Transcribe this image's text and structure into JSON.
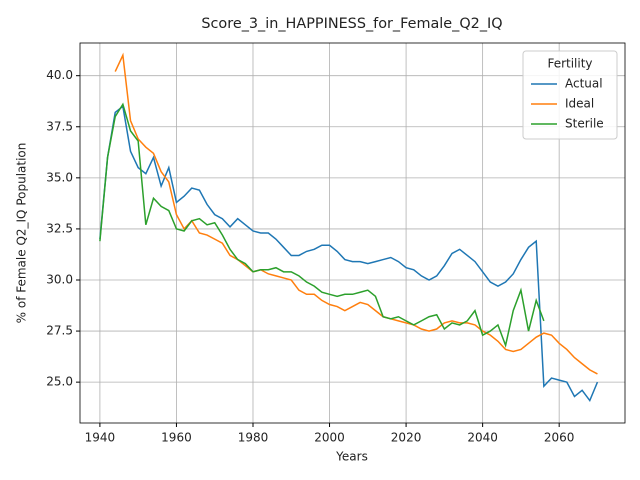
{
  "chart_data": {
    "type": "line",
    "title": "Score_3_in_HAPPINESS_for_Female_Q2_IQ",
    "xlabel": "Years",
    "ylabel": "% of Female Q2_IQ Population",
    "legend_title": "Fertility",
    "legend": "upper right",
    "grid": true,
    "xlim": [
      1934.8,
      2077.2
    ],
    "ylim": [
      23.0,
      41.6
    ],
    "xticks": [
      1940,
      1960,
      1980,
      2000,
      2020,
      2040,
      2060
    ],
    "yticks": [
      {
        "value": 25,
        "label": "25.0"
      },
      {
        "value": 27.5,
        "label": "27.5"
      },
      {
        "value": 30,
        "label": "30.0"
      },
      {
        "value": 32.5,
        "label": "32.5"
      },
      {
        "value": 35,
        "label": "35.0"
      },
      {
        "value": 37.5,
        "label": "37.5"
      },
      {
        "value": 40,
        "label": "40.0"
      }
    ],
    "x": [
      1940,
      1942,
      1944,
      1946,
      1948,
      1950,
      1952,
      1954,
      1956,
      1958,
      1960,
      1962,
      1964,
      1966,
      1968,
      1970,
      1972,
      1974,
      1976,
      1978,
      1980,
      1982,
      1984,
      1986,
      1988,
      1990,
      1992,
      1994,
      1996,
      1998,
      2000,
      2002,
      2004,
      2006,
      2008,
      2010,
      2012,
      2014,
      2016,
      2018,
      2020,
      2022,
      2024,
      2026,
      2028,
      2030,
      2032,
      2034,
      2036,
      2038,
      2040,
      2042,
      2044,
      2046,
      2048,
      2050,
      2052,
      2054,
      2056,
      2058,
      2060,
      2062,
      2064,
      2066,
      2068,
      2070
    ],
    "series": [
      {
        "name": "Actual",
        "color": "#1f77b4",
        "values": [
          32.0,
          36.0,
          38.2,
          38.5,
          36.3,
          35.5,
          35.2,
          36.0,
          34.6,
          35.5,
          33.8,
          34.1,
          34.5,
          34.4,
          33.7,
          33.2,
          33.0,
          32.6,
          33.0,
          32.7,
          32.4,
          32.3,
          32.3,
          32.0,
          31.6,
          31.2,
          31.2,
          31.4,
          31.5,
          31.7,
          31.7,
          31.4,
          31.0,
          30.9,
          30.9,
          30.8,
          30.9,
          31.0,
          31.1,
          30.9,
          30.6,
          30.5,
          30.2,
          30.0,
          30.2,
          30.7,
          31.3,
          31.5,
          31.2,
          30.9,
          30.4,
          29.9,
          29.7,
          29.9,
          30.3,
          31.0,
          31.6,
          31.9,
          24.8,
          25.2,
          25.1,
          25.0,
          24.3,
          24.6,
          24.1,
          25.0
        ]
      },
      {
        "name": "Ideal",
        "color": "#ff7f0e",
        "values": [
          null,
          null,
          40.2,
          41.0,
          37.8,
          36.9,
          36.5,
          36.2,
          35.3,
          34.8,
          33.2,
          32.5,
          32.9,
          32.3,
          32.2,
          32.0,
          31.8,
          31.2,
          31.0,
          30.7,
          30.4,
          30.5,
          30.3,
          30.2,
          30.1,
          30.0,
          29.5,
          29.3,
          29.3,
          29.0,
          28.8,
          28.7,
          28.5,
          28.7,
          28.9,
          28.8,
          28.5,
          28.2,
          28.1,
          28.0,
          27.9,
          27.8,
          27.6,
          27.5,
          27.6,
          27.9,
          28.0,
          27.9,
          27.9,
          27.8,
          27.5,
          27.3,
          27.0,
          26.6,
          26.5,
          26.6,
          26.9,
          27.2,
          27.4,
          27.3,
          26.9,
          26.6,
          26.2,
          25.9,
          25.6,
          25.4
        ]
      },
      {
        "name": "Sterile",
        "color": "#2ca02c",
        "values": [
          31.9,
          36.0,
          38.0,
          38.6,
          37.3,
          36.8,
          32.7,
          34.0,
          33.6,
          33.4,
          32.5,
          32.4,
          32.9,
          33.0,
          32.7,
          32.8,
          32.2,
          31.5,
          31.0,
          30.8,
          30.4,
          30.5,
          30.5,
          30.6,
          30.4,
          30.4,
          30.2,
          29.9,
          29.7,
          29.4,
          29.3,
          29.2,
          29.3,
          29.3,
          29.4,
          29.5,
          29.2,
          28.2,
          28.1,
          28.2,
          28.0,
          27.8,
          28.0,
          28.2,
          28.3,
          27.6,
          27.9,
          27.8,
          28.0,
          28.5,
          27.3,
          27.5,
          27.8,
          26.8,
          28.5,
          29.5,
          27.5,
          29.0,
          28.0,
          null,
          null,
          null,
          null,
          null,
          null,
          null
        ]
      }
    ]
  }
}
